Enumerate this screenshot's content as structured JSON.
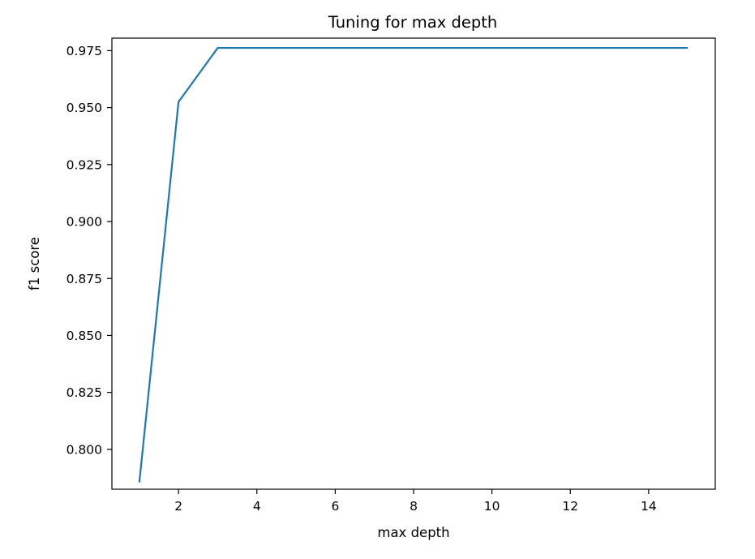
{
  "chart_data": {
    "type": "line",
    "title": "Tuning for max depth",
    "xlabel": "max depth",
    "ylabel": "f1 score",
    "xlim": [
      0.3,
      15.7
    ],
    "ylim": [
      0.7825,
      0.9805
    ],
    "xticks": [
      2,
      4,
      6,
      8,
      10,
      12,
      14
    ],
    "yticks": [
      0.8,
      0.825,
      0.85,
      0.875,
      0.9,
      0.925,
      0.95,
      0.975
    ],
    "xtick_labels": [
      "2",
      "4",
      "6",
      "8",
      "10",
      "12",
      "14"
    ],
    "ytick_labels": [
      "0.800",
      "0.825",
      "0.850",
      "0.875",
      "0.900",
      "0.925",
      "0.950",
      "0.975"
    ],
    "grid": false,
    "series": [
      {
        "name": "f1 score",
        "color": "#1f77b4",
        "x": [
          1,
          2,
          3,
          4,
          5,
          6,
          7,
          8,
          9,
          10,
          11,
          12,
          13,
          14,
          15
        ],
        "y": [
          0.7855,
          0.9525,
          0.9762,
          0.9762,
          0.9762,
          0.9762,
          0.9762,
          0.9762,
          0.9762,
          0.9762,
          0.9762,
          0.9762,
          0.9762,
          0.9762,
          0.9762
        ]
      }
    ]
  }
}
